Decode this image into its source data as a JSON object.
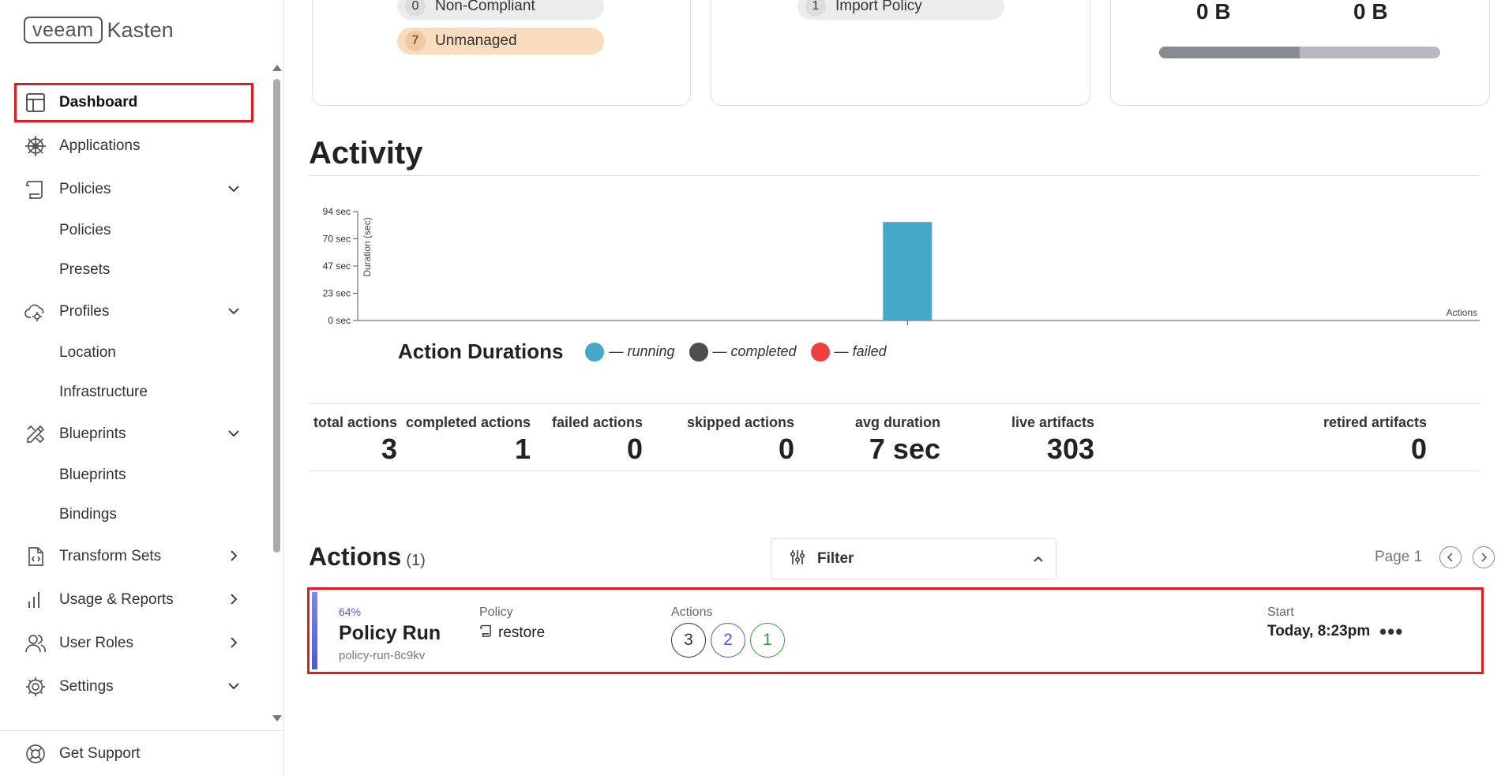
{
  "brand": {
    "veeam": "veeam",
    "kasten": "Kasten"
  },
  "sidebar": {
    "items": [
      {
        "label": "Dashboard",
        "icon": "dashboard-icon",
        "active": true
      },
      {
        "label": "Applications",
        "icon": "helm-icon"
      },
      {
        "label": "Policies",
        "icon": "scroll-icon",
        "expanded": true,
        "children": [
          "Policies",
          "Presets"
        ]
      },
      {
        "label": "Profiles",
        "icon": "cloud-gear-icon",
        "expanded": true,
        "children": [
          "Location",
          "Infrastructure"
        ]
      },
      {
        "label": "Blueprints",
        "icon": "pencil-ruler-icon",
        "expanded": true,
        "children": [
          "Blueprints",
          "Bindings"
        ]
      },
      {
        "label": "Transform Sets",
        "icon": "file-code-icon"
      },
      {
        "label": "Usage & Reports",
        "icon": "bar-chart-icon"
      },
      {
        "label": "User Roles",
        "icon": "users-icon"
      },
      {
        "label": "Settings",
        "icon": "gear-icon",
        "expanded": true
      }
    ],
    "support_label": "Get Support"
  },
  "cards": {
    "compliance": {
      "noncompliant": {
        "count": "0",
        "label": "Non-Compliant"
      },
      "unmanaged": {
        "count": "7",
        "label": "Unmanaged"
      }
    },
    "policies": {
      "import": {
        "count": "1",
        "label": "Import Policy"
      }
    },
    "usage": {
      "left_value": "0 B",
      "right_value": "0 B",
      "fill_fraction": 0.5
    }
  },
  "activity": {
    "title": "Activity",
    "legend": {
      "title": "Action Durations",
      "items": [
        {
          "label": "— running",
          "color": "#45a8c9"
        },
        {
          "label": "— completed",
          "color": "#4d4d4d"
        },
        {
          "label": "— failed",
          "color": "#ef4040"
        }
      ]
    },
    "stats": [
      {
        "label": "total actions",
        "value": "3"
      },
      {
        "label": "completed actions",
        "value": "1"
      },
      {
        "label": "failed actions",
        "value": "0"
      },
      {
        "label": "skipped actions",
        "value": "0"
      },
      {
        "label": "avg duration",
        "value": "7 sec"
      },
      {
        "label": "live artifacts",
        "value": "303"
      },
      {
        "label": "retired artifacts",
        "value": "0"
      }
    ]
  },
  "chart_data": {
    "type": "bar",
    "ylabel": "Duration (sec)",
    "xlabel": "Actions",
    "yticks": [
      "0 sec",
      "23 sec",
      "47 sec",
      "70 sec",
      "94 sec"
    ],
    "ylim": [
      0,
      94
    ],
    "bars": [
      {
        "status": "running",
        "value": 85,
        "x_fraction": 0.49
      }
    ],
    "color": "#45a8c9"
  },
  "actions": {
    "title": "Actions",
    "count": "(1)",
    "filter_label": "Filter",
    "page_label": "Page 1",
    "rows": [
      {
        "progress": "64%",
        "type": "Policy Run",
        "name": "policy-run-8c9kv",
        "policy_label": "Policy",
        "policy": "restore",
        "actions_label": "Actions",
        "counts": [
          {
            "value": "3",
            "color": "#333333"
          },
          {
            "value": "2",
            "color": "#4a5bd8"
          },
          {
            "value": "1",
            "color": "#2e9b3a"
          }
        ],
        "start_label": "Start",
        "start": "Today, 8:23pm",
        "more": "•••"
      }
    ]
  }
}
